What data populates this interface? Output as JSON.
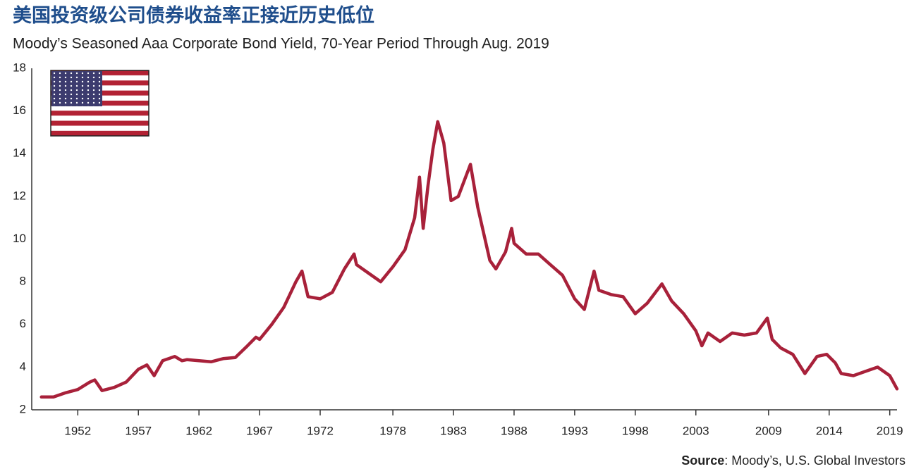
{
  "chart_data": {
    "type": "line",
    "title": "美国投资级公司债券收益率正接近历史低位",
    "subtitle": "Moody’s Seasoned Aaa Corporate Bond Yield, 70-Year Period Through Aug. 2019",
    "source_label": "Source",
    "source_text": ": Moody’s, U.S. Global Investors",
    "x": [
      1949.0,
      1950.0,
      1951.0,
      1952.0,
      1953.0,
      1953.4,
      1954.0,
      1955.0,
      1956.0,
      1957.0,
      1957.7,
      1958.3,
      1959.0,
      1960.0,
      1960.6,
      1961.0,
      1962.0,
      1963.0,
      1964.0,
      1965.0,
      1966.0,
      1966.7,
      1967.0,
      1968.0,
      1969.0,
      1970.0,
      1970.5,
      1971.0,
      1972.0,
      1973.0,
      1974.0,
      1974.8,
      1975.0,
      1976.0,
      1977.0,
      1978.0,
      1979.0,
      1979.8,
      1980.2,
      1980.5,
      1980.9,
      1981.3,
      1981.7,
      1982.2,
      1982.8,
      1983.4,
      1984.4,
      1985.0,
      1986.0,
      1986.5,
      1987.3,
      1987.8,
      1988.0,
      1989.0,
      1990.0,
      1991.0,
      1992.0,
      1993.0,
      1993.8,
      1994.6,
      1995.0,
      1996.0,
      1997.0,
      1998.0,
      1999.0,
      2000.2,
      2001.0,
      2002.0,
      2003.0,
      2003.5,
      2004.0,
      2005.0,
      2006.0,
      2007.0,
      2008.0,
      2008.9,
      2009.3,
      2010.0,
      2011.0,
      2012.0,
      2013.0,
      2013.8,
      2014.5,
      2015.0,
      2016.0,
      2017.0,
      2018.0,
      2019.0,
      2019.6
    ],
    "series": [
      {
        "name": "Moody’s Seasoned Aaa Corporate Bond Yield",
        "color": "#a8213a",
        "values": [
          2.6,
          2.6,
          2.8,
          2.95,
          3.3,
          3.4,
          2.9,
          3.05,
          3.3,
          3.9,
          4.1,
          3.6,
          4.3,
          4.5,
          4.3,
          4.35,
          4.3,
          4.25,
          4.4,
          4.45,
          5.0,
          5.4,
          5.3,
          6.0,
          6.8,
          8.0,
          8.5,
          7.3,
          7.2,
          7.5,
          8.6,
          9.3,
          8.8,
          8.4,
          8.0,
          8.7,
          9.5,
          11.0,
          12.9,
          10.5,
          12.5,
          14.2,
          15.5,
          14.5,
          11.8,
          12.0,
          13.5,
          11.5,
          9.0,
          8.6,
          9.4,
          10.5,
          9.8,
          9.3,
          9.3,
          8.8,
          8.3,
          7.2,
          6.7,
          8.5,
          7.6,
          7.4,
          7.3,
          6.5,
          7.0,
          7.9,
          7.1,
          6.5,
          5.7,
          5.0,
          5.6,
          5.2,
          5.6,
          5.5,
          5.6,
          6.3,
          5.3,
          4.9,
          4.6,
          3.7,
          4.5,
          4.6,
          4.2,
          3.7,
          3.6,
          3.8,
          4.0,
          3.6,
          2.98
        ]
      }
    ],
    "xlim": [
      1948.2,
      2019.6
    ],
    "xticks": [
      1952,
      1957,
      1962,
      1967,
      1972,
      1978,
      1983,
      1988,
      1993,
      1998,
      2003,
      2009,
      2014,
      2019
    ],
    "ylim": [
      2,
      18
    ],
    "yticks": [
      2,
      4,
      6,
      8,
      10,
      12,
      14,
      16,
      18
    ],
    "grid": false
  }
}
